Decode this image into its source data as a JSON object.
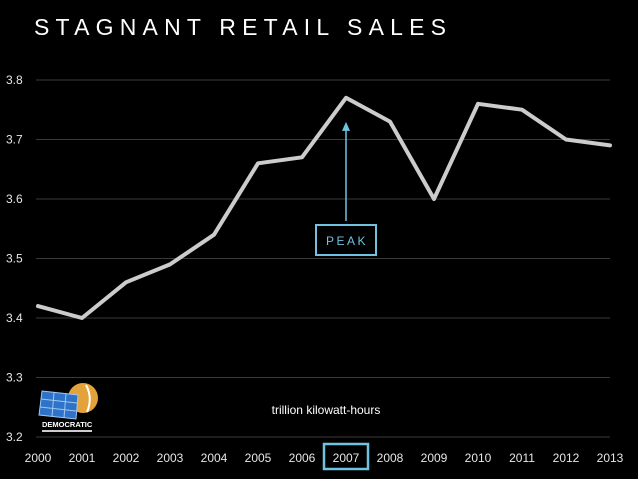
{
  "chart_data": {
    "type": "line",
    "title": "STAGNANT RETAIL SALES",
    "x": [
      2000,
      2001,
      2002,
      2003,
      2004,
      2005,
      2006,
      2007,
      2008,
      2009,
      2010,
      2011,
      2012,
      2013
    ],
    "x_tick_labels": [
      "2000",
      "2001",
      "2002",
      "2003",
      "2004",
      "2005",
      "2006",
      "2007",
      "2008",
      "2009",
      "2010",
      "2011",
      "2012",
      "2013"
    ],
    "series": [
      {
        "values": [
          3.42,
          3.4,
          3.46,
          3.49,
          3.54,
          3.66,
          3.67,
          3.77,
          3.73,
          3.6,
          3.76,
          3.75,
          3.7,
          3.69
        ]
      }
    ],
    "ylim": [
      3.2,
      3.8
    ],
    "y_ticks": [
      "3.2",
      "3.3",
      "3.4",
      "3.5",
      "3.6",
      "3.7",
      "3.8"
    ],
    "grid": true,
    "unit_label": "trillion kilowatt-hours",
    "annotation": {
      "text": "PEAK",
      "x": 2007,
      "highlight_tick": "2007"
    },
    "colors": {
      "background": "#000000",
      "line": "#cccccc",
      "grid": "#3a3a3a",
      "accent": "#6fc3e0"
    }
  },
  "logo": {
    "text": "DEMOCRATIC"
  }
}
